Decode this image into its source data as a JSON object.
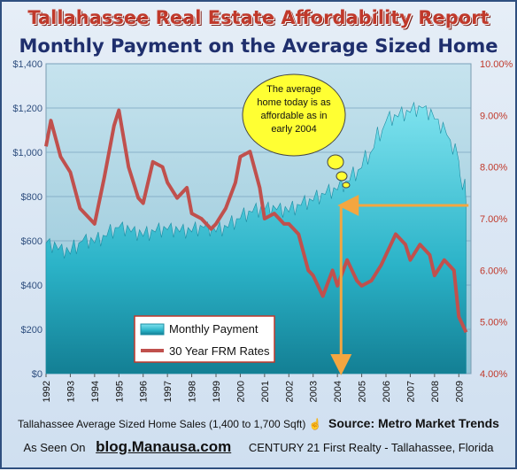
{
  "header": {
    "title": "Tallahassee Real Estate Affordability Report",
    "subtitle": "Monthly Payment on the  Average Sized Home"
  },
  "callout": {
    "text_lines": [
      "The average",
      "home today is as",
      "affordable as in",
      "early 2004"
    ]
  },
  "footer": {
    "source_desc": "Tallahassee Average Sized Home Sales (1,400 to 1,700 Sqft)",
    "source_label": "Source: Metro Market Trends",
    "as_seen": "As Seen On",
    "blog": "blog.Manausa.com",
    "brand": "CENTURY 21 First Realty - Tallahassee, Florida"
  },
  "icons": [
    "pointing-hand-icon"
  ],
  "colors": {
    "area": "#2bb3c8",
    "rate_line": "#c0504d",
    "title": "#c0392b",
    "subtitle": "#1f2f6d",
    "arrows": "#f4a640",
    "callout": "#ffff33"
  },
  "chart_data": {
    "type": "area",
    "x_ticks": [
      "1992",
      "1993",
      "1994",
      "1995",
      "1996",
      "1997",
      "1998",
      "1999",
      "2000",
      "2001",
      "2002",
      "2003",
      "2004",
      "2005",
      "2006",
      "2007",
      "2008",
      "2009"
    ],
    "xlim": [
      1992,
      2009.5
    ],
    "y_left": {
      "ticks": [
        "$0",
        "$200",
        "$400",
        "$600",
        "$800",
        "$1,000",
        "$1,200",
        "$1,400"
      ],
      "lim": [
        0,
        1400
      ]
    },
    "y_right": {
      "ticks": [
        "4.00%",
        "5.00%",
        "6.00%",
        "7.00%",
        "8.00%",
        "9.00%",
        "10.00%"
      ],
      "lim": [
        4,
        10
      ]
    },
    "grid": "horizontal",
    "legend_placement": "bottom-left",
    "series": [
      {
        "name": "Monthly Payment",
        "axis": "left",
        "x": [
          1992.0,
          1992.5,
          1993.0,
          1993.5,
          1994.0,
          1994.5,
          1995.0,
          1995.5,
          1996.0,
          1996.5,
          1997.0,
          1997.5,
          1998.0,
          1998.5,
          1999.0,
          1999.5,
          2000.0,
          2000.5,
          2001.0,
          2001.5,
          2002.0,
          2002.5,
          2003.0,
          2003.5,
          2004.0,
          2004.5,
          2005.0,
          2005.5,
          2006.0,
          2006.5,
          2007.0,
          2007.5,
          2008.0,
          2008.5,
          2009.0,
          2009.3
        ],
        "values": [
          590,
          560,
          540,
          600,
          590,
          620,
          660,
          640,
          620,
          640,
          650,
          640,
          640,
          660,
          640,
          660,
          700,
          730,
          740,
          740,
          730,
          760,
          780,
          810,
          830,
          870,
          930,
          1020,
          1140,
          1160,
          1180,
          1200,
          1150,
          1080,
          960,
          760
        ]
      },
      {
        "name": "30 Year FRM Rates",
        "axis": "right",
        "x": [
          1992.0,
          1992.2,
          1992.6,
          1993.0,
          1993.4,
          1993.8,
          1994.0,
          1994.4,
          1994.8,
          1995.0,
          1995.4,
          1995.8,
          1996.0,
          1996.4,
          1996.8,
          1997.0,
          1997.4,
          1997.8,
          1998.0,
          1998.4,
          1998.8,
          1999.0,
          1999.4,
          1999.8,
          2000.0,
          2000.4,
          2000.8,
          2001.0,
          2001.4,
          2001.8,
          2002.0,
          2002.4,
          2002.8,
          2003.0,
          2003.4,
          2003.8,
          2004.0,
          2004.4,
          2004.8,
          2005.0,
          2005.4,
          2005.8,
          2006.0,
          2006.4,
          2006.8,
          2007.0,
          2007.4,
          2007.8,
          2008.0,
          2008.4,
          2008.8,
          2009.0,
          2009.3
        ],
        "values": [
          8.4,
          8.9,
          8.2,
          7.9,
          7.2,
          7.0,
          6.9,
          7.8,
          8.8,
          9.1,
          8.0,
          7.4,
          7.3,
          8.1,
          8.0,
          7.7,
          7.4,
          7.6,
          7.1,
          7.0,
          6.8,
          6.9,
          7.2,
          7.7,
          8.2,
          8.3,
          7.6,
          7.0,
          7.1,
          6.9,
          6.9,
          6.7,
          6.0,
          5.9,
          5.5,
          6.0,
          5.7,
          6.2,
          5.8,
          5.7,
          5.8,
          6.1,
          6.3,
          6.7,
          6.5,
          6.2,
          6.5,
          6.3,
          5.9,
          6.2,
          6.0,
          5.1,
          4.8
        ]
      }
    ]
  }
}
